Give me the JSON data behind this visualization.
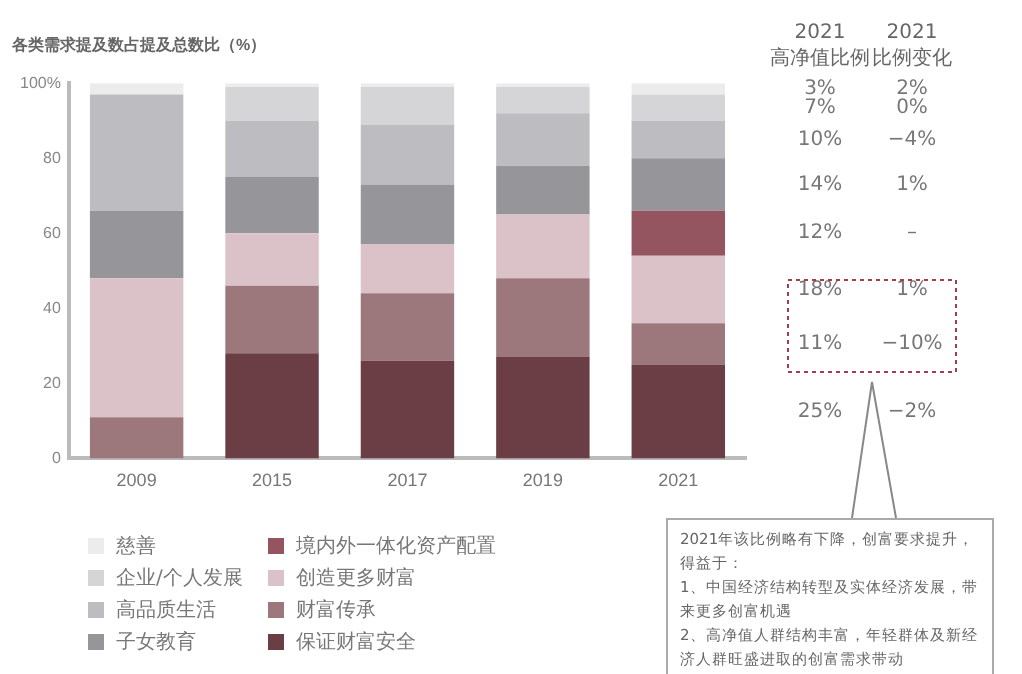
{
  "chart_data": {
    "type": "bar",
    "stacked": true,
    "title": "各类需求提及数占提及总数比（%）",
    "categories": [
      "2009",
      "2015",
      "2017",
      "2019",
      "2021"
    ],
    "series": [
      {
        "name": "保证财富安全",
        "color": "#6b3e45",
        "values": [
          0,
          28,
          26,
          27,
          25
        ]
      },
      {
        "name": "财富传承",
        "color": "#9c777c",
        "values": [
          11,
          18,
          18,
          21,
          11
        ]
      },
      {
        "name": "创造更多财富",
        "color": "#dbc2c8",
        "values": [
          37,
          14,
          13,
          17,
          18
        ]
      },
      {
        "name": "境内外一体化资产配置",
        "color": "#945560",
        "values": [
          0,
          0,
          0,
          0,
          12
        ]
      },
      {
        "name": "子女教育",
        "color": "#96959a",
        "values": [
          18,
          15,
          16,
          13,
          14
        ]
      },
      {
        "name": "高品质生活",
        "color": "#bdbcc1",
        "values": [
          31,
          15,
          16,
          14,
          10
        ]
      },
      {
        "name": "企业/个人发展",
        "color": "#d5d5d7",
        "values": [
          0,
          9,
          10,
          7,
          7
        ]
      },
      {
        "name": "慈善",
        "color": "#ececec",
        "values": [
          3,
          1,
          1,
          1,
          3
        ]
      }
    ],
    "ylim": [
      0,
      100
    ],
    "yticks": [
      0,
      20,
      40,
      60,
      80,
      {
        "value": 100,
        "label": "100%"
      }
    ],
    "grid": false,
    "legend": "bottom",
    "annotations": [
      "2021\n高净值比例",
      "2021\n比例变化",
      "3%",
      "2%",
      "7%",
      "0%",
      "10%",
      "−4%",
      "14%",
      "1%",
      "12%",
      "–",
      "18%",
      "1%",
      "11%",
      "−10%",
      "25%",
      "−2%",
      "2021年该比例略有下降，创富要求提升，得益于：\n1、中国经济结构转型及实体经济发展，带来更多创富机遇\n2、高净值人群结构丰富，年轻群体及新经济人群旺盛进取的创富需求带动"
    ]
  }
}
